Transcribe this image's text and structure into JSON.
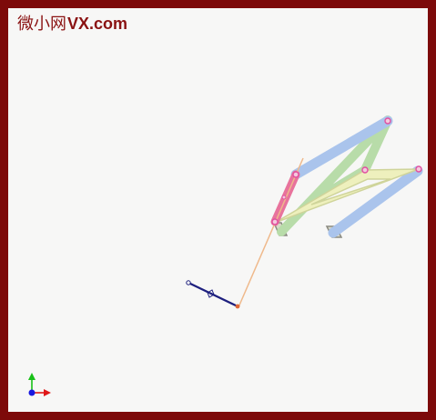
{
  "watermark": {
    "chinese": "微小网",
    "latin": "VX.com"
  },
  "colors": {
    "frame": "#7d0a0a",
    "background": "#f7f7f6",
    "link_blue": "#aac4ec",
    "link_green": "#b8dca9",
    "link_yellow": "#eef0bd",
    "link_pink": "#e8739c",
    "ground": "#d9d9c9",
    "crank_navy": "#1d1f7e",
    "trace_orange": "#efb98b",
    "joint": "#e14fa0",
    "axis_x": "#e01818",
    "axis_y": "#18c018",
    "axis_z": "#1818e0"
  },
  "icons": {
    "axis_triad": "xyz-axis-triad-icon"
  }
}
